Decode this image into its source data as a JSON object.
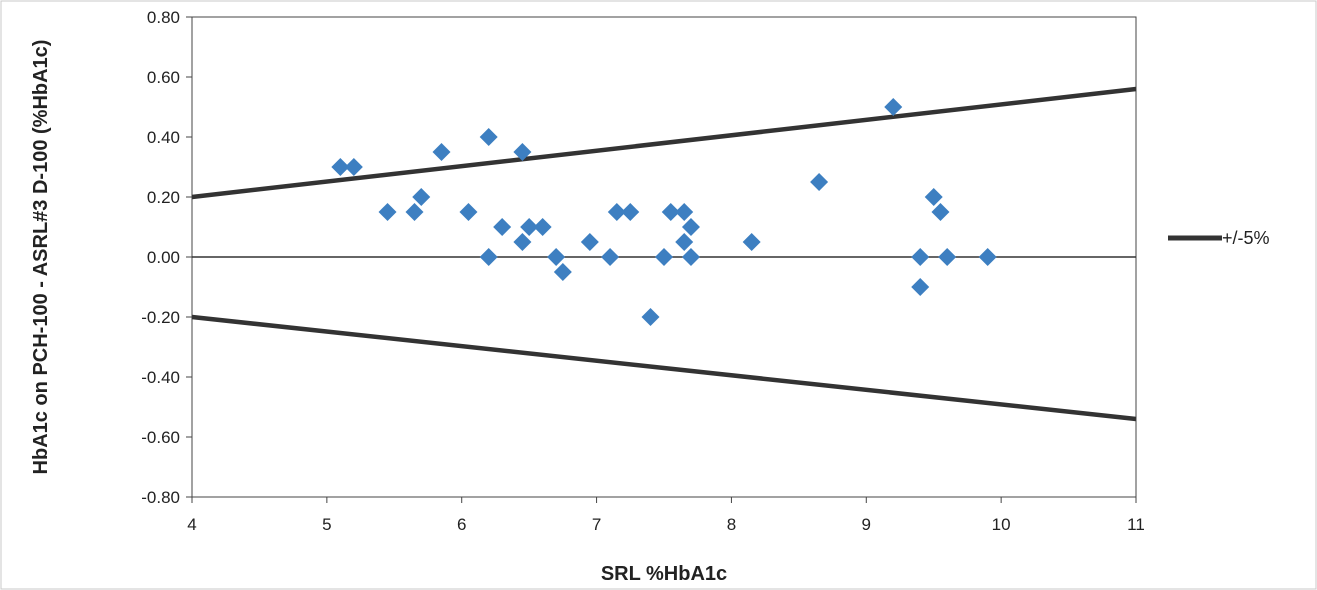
{
  "chart_data": {
    "type": "scatter",
    "xlabel": "SRL %HbA1c",
    "ylabel": "HbA1c on PCH-100 - ASRL#3 D-100 (%HbA1c)",
    "xlim": [
      4,
      11
    ],
    "ylim": [
      -0.8,
      0.8
    ],
    "x_ticks": [
      4,
      5,
      6,
      7,
      8,
      9,
      10,
      11
    ],
    "y_ticks": [
      0.8,
      0.6,
      0.4,
      0.2,
      0.0,
      -0.2,
      -0.4,
      -0.6,
      -0.8
    ],
    "x_tick_labels": [
      "4",
      "5",
      "6",
      "7",
      "8",
      "9",
      "10",
      "11"
    ],
    "y_tick_labels": [
      "0.80",
      "0.60",
      "0.40",
      "0.20",
      "0.00",
      "-0.20",
      "-0.40",
      "-0.60",
      "-0.80"
    ],
    "grid": false,
    "legend_position": "right",
    "legend": [
      {
        "label": "+/-5%",
        "color": "#333333"
      }
    ],
    "zero_line": 0.0,
    "limit_lines": [
      {
        "name": "+/-5%",
        "points": [
          [
            4,
            0.2
          ],
          [
            11,
            0.56
          ]
        ],
        "color": "#333333"
      },
      {
        "name": "+/-5%",
        "points": [
          [
            4,
            -0.2
          ],
          [
            11,
            -0.54
          ]
        ],
        "color": "#333333"
      }
    ],
    "marker_color": "#3d7fc1",
    "points": [
      [
        5.1,
        0.3
      ],
      [
        5.2,
        0.3
      ],
      [
        5.45,
        0.15
      ],
      [
        5.65,
        0.15
      ],
      [
        5.7,
        0.2
      ],
      [
        5.85,
        0.35
      ],
      [
        6.05,
        0.15
      ],
      [
        6.2,
        0.4
      ],
      [
        6.2,
        0.0
      ],
      [
        6.3,
        0.1
      ],
      [
        6.45,
        0.35
      ],
      [
        6.45,
        0.05
      ],
      [
        6.5,
        0.1
      ],
      [
        6.6,
        0.1
      ],
      [
        6.7,
        0.0
      ],
      [
        6.75,
        -0.05
      ],
      [
        6.95,
        0.05
      ],
      [
        7.1,
        0.0
      ],
      [
        7.15,
        0.15
      ],
      [
        7.25,
        0.15
      ],
      [
        7.4,
        -0.2
      ],
      [
        7.5,
        0.0
      ],
      [
        7.55,
        0.15
      ],
      [
        7.65,
        0.15
      ],
      [
        7.65,
        0.05
      ],
      [
        7.7,
        0.1
      ],
      [
        7.7,
        0.0
      ],
      [
        8.15,
        0.05
      ],
      [
        8.65,
        0.25
      ],
      [
        9.2,
        0.5
      ],
      [
        9.4,
        0.0
      ],
      [
        9.4,
        -0.1
      ],
      [
        9.5,
        0.2
      ],
      [
        9.55,
        0.15
      ],
      [
        9.6,
        0.0
      ],
      [
        9.9,
        0.0
      ]
    ]
  }
}
